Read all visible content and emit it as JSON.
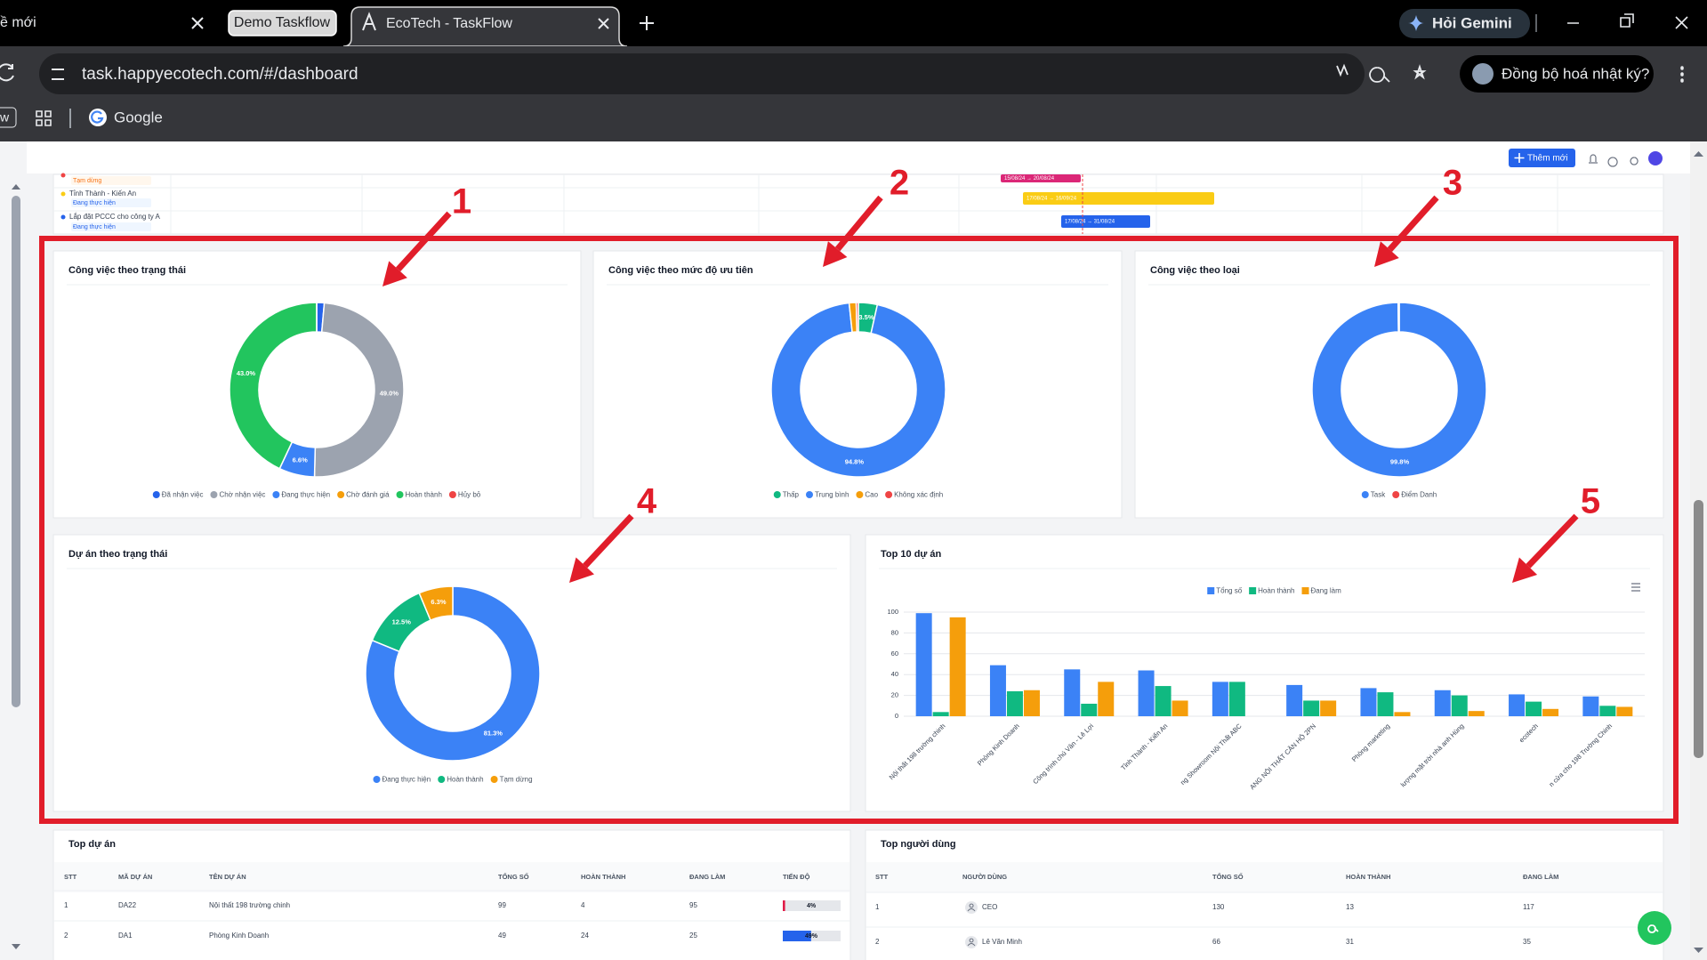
{
  "browser": {
    "tabs": [
      "ề mới",
      "Demo Taskflow",
      "EcoTech - TaskFlow"
    ],
    "gemini": "Hỏi Gemini",
    "url": "task.happyecotech.com/#/dashboard",
    "sync": "Đồng bộ hoá nhật ký?",
    "bookmarks": [
      "w",
      "Google"
    ]
  },
  "app": {
    "add_button": "Thêm mới",
    "gantt": {
      "rows": [
        {
          "status": "Tạm dừng"
        },
        {
          "name": "Tỉnh Thành - Kiến An",
          "status": "Đang thực hiện"
        },
        {
          "name": "Lắp đặt PCCC cho công ty A",
          "status": "Đang thực hiện"
        }
      ],
      "bars": [
        "15/08/24 → 20/08/24",
        "17/08/24 → 16/09/24",
        "17/08/24 → 31/08/24"
      ]
    }
  },
  "annotations": [
    "1",
    "2",
    "3",
    "4",
    "5"
  ],
  "charts": [
    {
      "type": "donut",
      "title": "Công việc theo trạng thái",
      "categories": [
        "Đã nhận việc",
        "Chờ nhận việc",
        "Đang thực hiện",
        "Chờ đánh giá",
        "Hoàn thành",
        "Hủy bỏ"
      ],
      "colors": [
        "#2563eb",
        "#9ca3af",
        "#3b82f6",
        "#f59e0b",
        "#22c55e",
        "#ef4444"
      ],
      "values": [
        1.4,
        49.0,
        6.6,
        0,
        43.0,
        0
      ],
      "value_labels": [
        null,
        "49.0%",
        "6.6%",
        null,
        "43.0%",
        null
      ]
    },
    {
      "type": "donut",
      "title": "Công việc theo mức độ ưu tiên",
      "categories": [
        "Thấp",
        "Trung bình",
        "Cao",
        "Không xác định"
      ],
      "colors": [
        "#10b981",
        "#3b82f6",
        "#f59e0b",
        "#ef4444"
      ],
      "values": [
        3.5,
        94.8,
        1.3,
        0.4
      ],
      "value_labels": [
        "3.5%",
        "94.8%",
        null,
        null
      ]
    },
    {
      "type": "donut",
      "title": "Công việc theo loại",
      "categories": [
        "Task",
        "Điểm Danh"
      ],
      "colors": [
        "#3b82f6",
        "#ef4444"
      ],
      "values": [
        99.8,
        0.2
      ],
      "value_labels": [
        "99.8%",
        null
      ]
    },
    {
      "type": "donut",
      "title": "Dự án theo trạng thái",
      "categories": [
        "Đang thực hiện",
        "Hoàn thành",
        "Tạm dừng"
      ],
      "colors": [
        "#3b82f6",
        "#10b981",
        "#f59e0b"
      ],
      "values": [
        81.3,
        12.5,
        6.3
      ],
      "value_labels": [
        "81.3%",
        "12.5%",
        "6.3%"
      ]
    },
    {
      "type": "bar",
      "title": "Top 10 dự án",
      "categories": [
        "Nội thất 198 trường chinh",
        "Phòng Kinh Doanh",
        "Công trình chú Vân - Lê Lợi",
        "Tỉnh Thành - Kiến An",
        "ng Showroom Nội Thất ABC",
        "ANG NỘI THẤT CĂN HỘ 2PN",
        "Phòng marketing",
        "lượng mặt trời nhà anh Hùng",
        "ecotech",
        "n cửa cho 198 Trường Chinh"
      ],
      "series": [
        {
          "name": "Tổng số",
          "color": "#3b82f6",
          "values": [
            99,
            49,
            45,
            44,
            33,
            30,
            27,
            25,
            21,
            19
          ]
        },
        {
          "name": "Hoàn thành",
          "color": "#10b981",
          "values": [
            4,
            24,
            12,
            29,
            33,
            15,
            23,
            20,
            14,
            10
          ]
        },
        {
          "name": "Đang làm",
          "color": "#f59e0b",
          "values": [
            95,
            25,
            33,
            15,
            0,
            15,
            4,
            5,
            7,
            9
          ]
        }
      ],
      "ylim": [
        0,
        100
      ],
      "yticks": [
        0,
        20,
        40,
        60,
        80,
        100
      ],
      "grid": true
    }
  ],
  "tables": [
    {
      "title": "Top dự án",
      "columns": [
        "STT",
        "MÃ DỰ ÁN",
        "TÊN DỰ ÁN",
        "TỔNG SỐ",
        "HOÀN THÀNH",
        "ĐANG LÀM",
        "TIẾN ĐỘ"
      ],
      "rows": [
        [
          1,
          "DA22",
          "Nội thất 198 trường chinh",
          99,
          4,
          95,
          {
            "value": 4,
            "label": "4%"
          }
        ],
        [
          2,
          "DA1",
          "Phòng Kinh Doanh",
          49,
          24,
          25,
          {
            "value": 49,
            "label": "49%"
          }
        ]
      ]
    },
    {
      "title": "Top người dùng",
      "columns": [
        "STT",
        "NGƯỜI DÙNG",
        "TỔNG SỐ",
        "HOÀN THÀNH",
        "ĐANG LÀM"
      ],
      "rows": [
        [
          1,
          "CEO",
          130,
          13,
          117
        ],
        [
          2,
          "Lê Văn Minh",
          66,
          31,
          35
        ]
      ]
    }
  ]
}
